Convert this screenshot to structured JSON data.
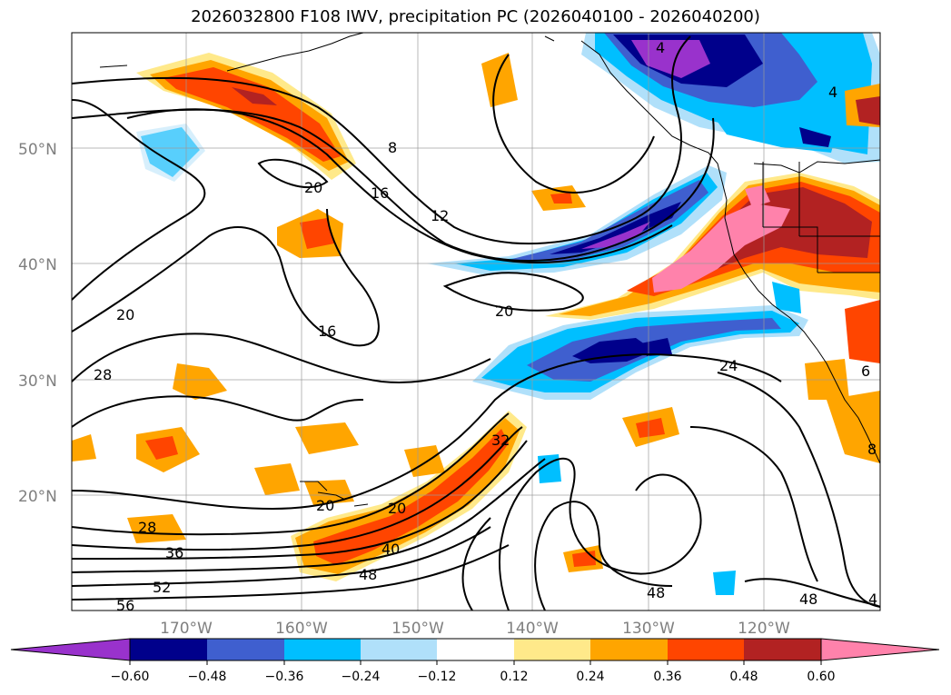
{
  "title": "2026032800 F108 IWV, precipitation PC (2026040100 - 2026040200)",
  "lat_ticks": [
    {
      "label": "50°N",
      "lat": 50
    },
    {
      "label": "40°N",
      "lat": 40
    },
    {
      "label": "30°N",
      "lat": 30
    },
    {
      "label": "20°N",
      "lat": 20
    }
  ],
  "lon_ticks": [
    {
      "label": "170°W",
      "lon": -170
    },
    {
      "label": "160°W",
      "lon": -160
    },
    {
      "label": "150°W",
      "lon": -150
    },
    {
      "label": "140°W",
      "lon": -140
    },
    {
      "label": "130°W",
      "lon": -130
    },
    {
      "label": "120°W",
      "lon": -120
    }
  ],
  "colorbar": {
    "bins": [
      {
        "color": "#9932cc"
      },
      {
        "color": "#00008b"
      },
      {
        "color": "#3f5fcf"
      },
      {
        "color": "#00bfff"
      },
      {
        "color": "#b0e0fa"
      },
      {
        "color": "#ffffff"
      },
      {
        "color": "#ffe98a"
      },
      {
        "color": "#ffa500"
      },
      {
        "color": "#ff4500"
      },
      {
        "color": "#b22222"
      },
      {
        "color": "#ff82ab"
      }
    ],
    "labels": [
      "−0.60",
      "−0.48",
      "−0.36",
      "−0.24",
      "−0.12",
      "0.12",
      "0.24",
      "0.36",
      "0.48",
      "0.60"
    ]
  },
  "contour_labels": [
    {
      "text": "8"
    },
    {
      "text": "16"
    },
    {
      "text": "12"
    },
    {
      "text": "20"
    },
    {
      "text": "4"
    },
    {
      "text": "4"
    },
    {
      "text": "20"
    },
    {
      "text": "16"
    },
    {
      "text": "28"
    },
    {
      "text": "20"
    },
    {
      "text": "24"
    },
    {
      "text": "32"
    },
    {
      "text": "20"
    },
    {
      "text": "20"
    },
    {
      "text": "28"
    },
    {
      "text": "36"
    },
    {
      "text": "40"
    },
    {
      "text": "48"
    },
    {
      "text": "52"
    },
    {
      "text": "56"
    },
    {
      "text": "48"
    },
    {
      "text": "48"
    },
    {
      "text": "4"
    },
    {
      "text": "6"
    },
    {
      "text": "8"
    }
  ]
}
